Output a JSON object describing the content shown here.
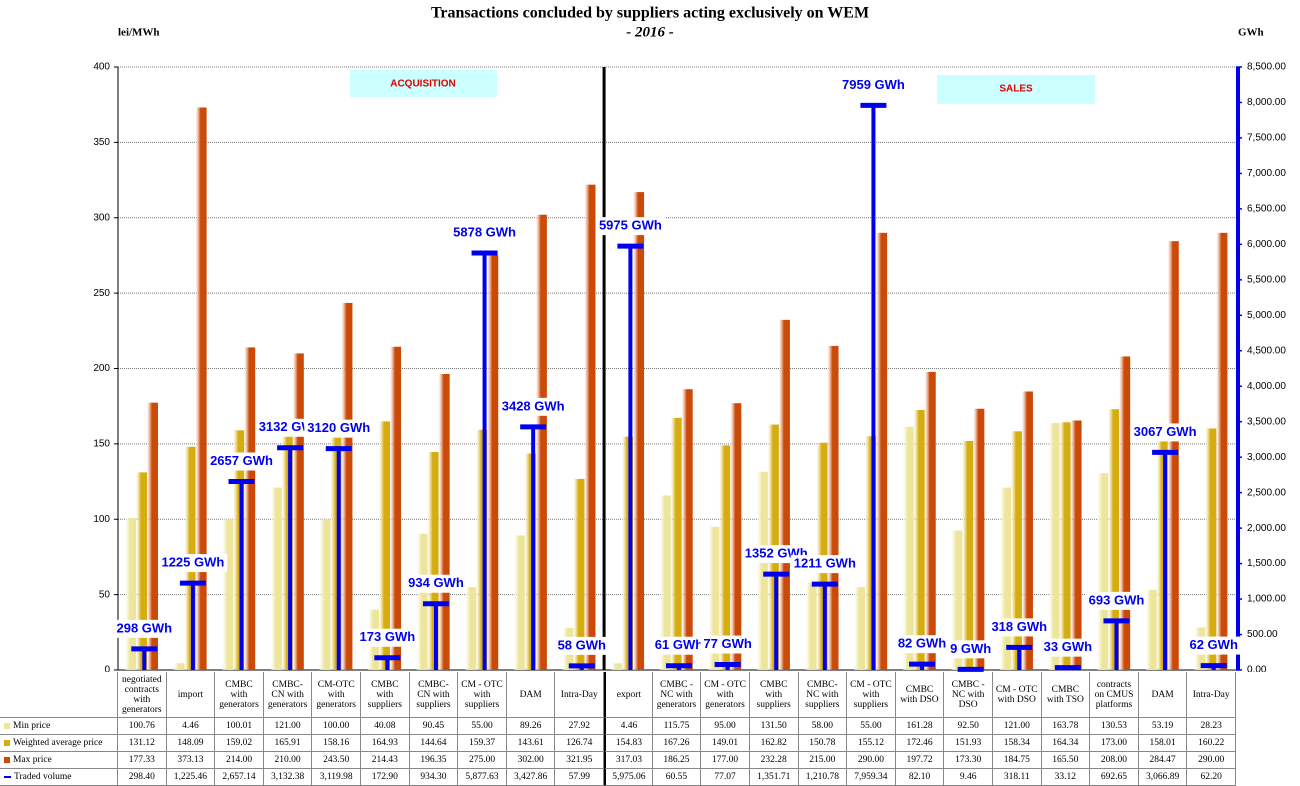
{
  "chart_data": {
    "type": "bar",
    "title": "Transactions concluded by suppliers acting exclusively on WEM",
    "subtitle": "- 2016 -",
    "y_label": "lei/MWh",
    "y2_label": "GWh",
    "annotations": [
      "ACQUISITION",
      "SALES"
    ],
    "grid": true,
    "categories": [
      "negotiated contracts with generators",
      "import",
      "CMBC with generators",
      "CMBC-CN with generators",
      "CM-OTC with generators",
      "CMBC with suppliers",
      "CMBC-CN with suppliers",
      "CM - OTC with suppliers",
      "DAM",
      "Intra-Day",
      "export",
      "CMBC - NC with generators",
      "CM - OTC with generators",
      "CMBC with suppliers",
      "CMBC-NC with suppliers",
      "CM - OTC with suppliers",
      "CMBC with DSO",
      "CMBC - NC with DSO",
      "CM - OTC with DSO",
      "CMBC with TSO",
      "contracts on CMUS platforms",
      "DAM",
      "Intra-Day"
    ],
    "ylim": [
      0,
      400
    ],
    "yticks": [
      0,
      50,
      100,
      150,
      200,
      250,
      300,
      350,
      400
    ],
    "y2lim": [
      0,
      8500
    ],
    "y2ticks": [
      {
        "value": 0,
        "label": "0.00"
      },
      {
        "value": 500,
        "label": "500.00"
      },
      {
        "value": 1000,
        "label": "1,000.00"
      },
      {
        "value": 1500,
        "label": "1,500.00"
      },
      {
        "value": 2000,
        "label": "2,000.00"
      },
      {
        "value": 2500,
        "label": "2,500.00"
      },
      {
        "value": 3000,
        "label": "3,000.00"
      },
      {
        "value": 3500,
        "label": "3,500.00"
      },
      {
        "value": 4000,
        "label": "4,000.00"
      },
      {
        "value": 4500,
        "label": "4,500.00"
      },
      {
        "value": 5000,
        "label": "5,000.00"
      },
      {
        "value": 5500,
        "label": "5,500.00"
      },
      {
        "value": 6000,
        "label": "6,000.00"
      },
      {
        "value": 6500,
        "label": "6,500.00"
      },
      {
        "value": 7000,
        "label": "7,000.00"
      },
      {
        "value": 7500,
        "label": "7,500.00"
      },
      {
        "value": 8000,
        "label": "8,000.00"
      },
      {
        "value": 8500,
        "label": "8,500.00"
      }
    ],
    "series": [
      {
        "name": "Min price",
        "color": "#ece59a",
        "values": [
          100.76,
          4.46,
          100.01,
          121.0,
          100.0,
          40.08,
          90.45,
          55.0,
          89.26,
          27.92,
          4.46,
          115.75,
          95.0,
          131.5,
          58.0,
          55.0,
          161.28,
          92.5,
          121.0,
          163.78,
          130.53,
          53.19,
          28.23
        ],
        "value_labels": [
          "100.76",
          "4.46",
          "100.01",
          "121.00",
          "100.00",
          "40.08",
          "90.45",
          "55.00",
          "89.26",
          "27.92",
          "4.46",
          "115.75",
          "95.00",
          "131.50",
          "58.00",
          "55.00",
          "161.28",
          "92.50",
          "121.00",
          "163.78",
          "130.53",
          "53.19",
          "28.23"
        ]
      },
      {
        "name": "Weighted average price",
        "color": "#d6ad10",
        "values": [
          131.12,
          148.09,
          159.02,
          165.91,
          158.16,
          164.93,
          144.64,
          159.37,
          143.61,
          126.74,
          154.83,
          167.26,
          149.01,
          162.82,
          150.78,
          155.12,
          172.46,
          151.93,
          158.34,
          164.34,
          173.0,
          158.01,
          160.22
        ],
        "value_labels": [
          "131.12",
          "148.09",
          "159.02",
          "165.91",
          "158.16",
          "164.93",
          "144.64",
          "159.37",
          "143.61",
          "126.74",
          "154.83",
          "167.26",
          "149.01",
          "162.82",
          "150.78",
          "155.12",
          "172.46",
          "151.93",
          "158.34",
          "164.34",
          "173.00",
          "158.01",
          "160.22"
        ]
      },
      {
        "name": "Max price",
        "color": "#cc4a08",
        "values": [
          177.33,
          373.13,
          214.0,
          210.0,
          243.5,
          214.43,
          196.35,
          275.0,
          302.0,
          321.95,
          317.03,
          186.25,
          177.0,
          232.28,
          215.0,
          290.0,
          197.72,
          173.3,
          184.75,
          165.5,
          208.0,
          284.47,
          290.0
        ],
        "value_labels": [
          "177.33",
          "373.13",
          "214.00",
          "210.00",
          "243.50",
          "214.43",
          "196.35",
          "275.00",
          "302.00",
          "321.95",
          "317.03",
          "186.25",
          "177.00",
          "232.28",
          "215.00",
          "290.00",
          "197.72",
          "173.30",
          "184.75",
          "165.50",
          "208.00",
          "284.47",
          "290.00"
        ]
      },
      {
        "name": "Traded volume",
        "color": "#0000ee",
        "axis": "y2",
        "values": [
          298.4,
          1225.46,
          2657.14,
          3132.38,
          3119.98,
          172.9,
          934.3,
          5877.63,
          3427.86,
          57.99,
          5975.06,
          60.55,
          77.07,
          1351.71,
          1210.78,
          7959.34,
          82.1,
          9.46,
          318.11,
          33.12,
          692.65,
          3066.89,
          62.2
        ],
        "value_labels": [
          "298 GWh",
          "1225 GWh",
          "2657 GWh",
          "3132 GWh",
          "3120 GWh",
          "173 GWh",
          "934 GWh",
          "5878 GWh",
          "3428 GWh",
          "58 GWh",
          "5975 GWh",
          "61 GWh",
          "77 GWh",
          "1352 GWh",
          "1211 GWh",
          "7959 GWh",
          "82 GWh",
          "9 GWh",
          "318 GWh",
          "33 GWh",
          "693 GWh",
          "3067 GWh",
          "62 GWh"
        ],
        "table_labels": [
          "298.40",
          "1,225.46",
          "2,657.14",
          "3,132.38",
          "3,119.98",
          "172.90",
          "934.30",
          "5,877.63",
          "3,427.86",
          "57.99",
          "5,975.06",
          "60.55",
          "77.07",
          "1,351.71",
          "1,210.78",
          "7,959.34",
          "82.10",
          "9.46",
          "318.11",
          "33.12",
          "692.65",
          "3,066.89",
          "62.20"
        ]
      }
    ]
  }
}
